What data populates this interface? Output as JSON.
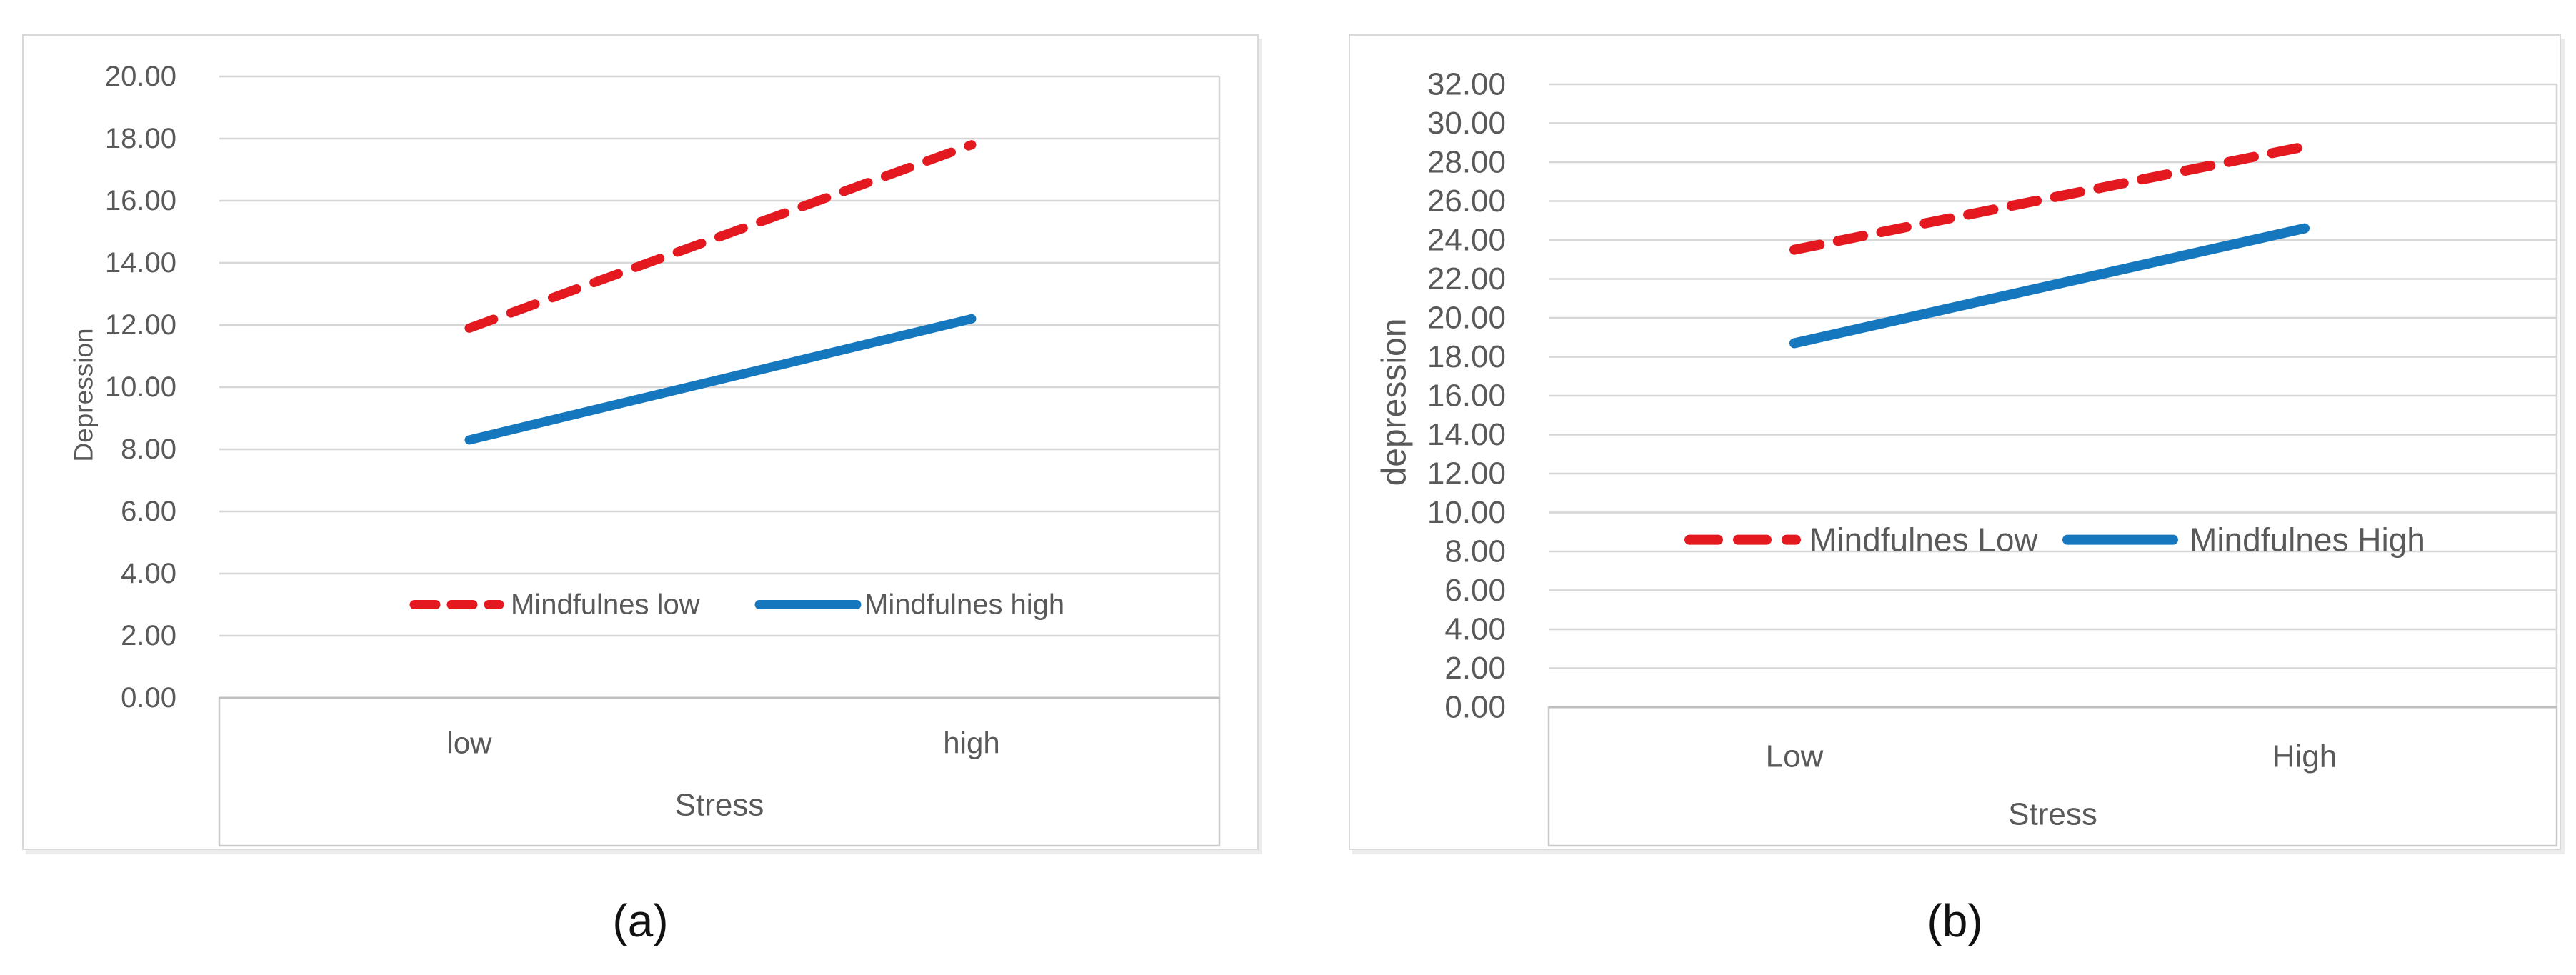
{
  "colors": {
    "series_red": "#e4181f",
    "series_blue": "#1577bd",
    "axis_text": "#595959",
    "gridline": "#d6d6d6",
    "frame": "#c9c9c9"
  },
  "chart_data": [
    {
      "type": "line",
      "caption": "(a)",
      "xlabel": "Stress",
      "ylabel": "Depression",
      "categories": [
        "low",
        "high"
      ],
      "series": [
        {
          "name": "Mindfulnes low",
          "values": [
            11.9,
            17.8
          ],
          "color": "#e4181f",
          "style": "dashed"
        },
        {
          "name": "Mindfulnes high",
          "values": [
            8.3,
            12.2
          ],
          "color": "#1577bd",
          "style": "solid"
        }
      ],
      "ylim": [
        0,
        20
      ],
      "ytick_step": 2,
      "yticks": [
        "20.00",
        "18.00",
        "16.00",
        "14.00",
        "12.00",
        "10.00",
        "8.00",
        "6.00",
        "4.00",
        "2.00",
        "0.00"
      ],
      "grid": true,
      "legend_position": "inside-plot-lower-center",
      "legend_y_value": 3.0
    },
    {
      "type": "line",
      "caption": "(b)",
      "xlabel": "Stress",
      "ylabel": "depression",
      "categories": [
        "Low",
        "High"
      ],
      "series": [
        {
          "name": "Mindfulnes Low",
          "values": [
            23.5,
            28.8
          ],
          "color": "#e4181f",
          "style": "dashed"
        },
        {
          "name": "Mindfulnes High",
          "values": [
            18.7,
            24.6
          ],
          "color": "#1577bd",
          "style": "solid"
        }
      ],
      "ylim": [
        0,
        32
      ],
      "ytick_step": 2,
      "yticks": [
        "32.00",
        "30.00",
        "28.00",
        "26.00",
        "24.00",
        "22.00",
        "20.00",
        "18.00",
        "16.00",
        "14.00",
        "12.00",
        "10.00",
        "8.00",
        "6.00",
        "4.00",
        "2.00",
        "0.00"
      ],
      "grid": true,
      "legend_position": "inside-plot-middle",
      "legend_y_value": 8.6
    }
  ]
}
